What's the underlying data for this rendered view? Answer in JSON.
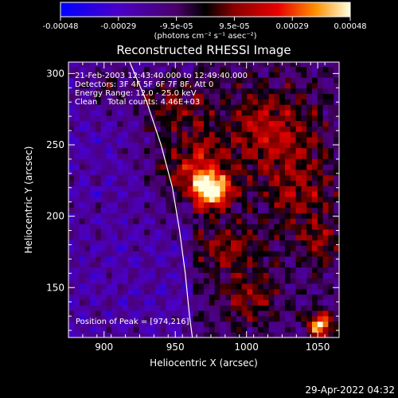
{
  "chart_data": {
    "type": "heatmap",
    "title": "Reconstructed RHESSI Image",
    "xlabel": "Heliocentric X (arcsec)",
    "ylabel": "Heliocentric Y (arcsec)",
    "xlim": [
      875,
      1065
    ],
    "ylim": [
      115,
      308
    ],
    "x_ticks": [
      900,
      950,
      1000,
      1050
    ],
    "y_ticks": [
      150,
      200,
      250,
      300
    ],
    "colorbar": {
      "ticks": [
        "-0.00048",
        "-0.00029",
        "-9.5e-05",
        "9.5e-05",
        "0.00029",
        "0.00048"
      ],
      "unit_label": "(photons cm⁻² s⁻¹ asec⁻²)",
      "range": [
        -0.00048,
        0.00048
      ]
    },
    "annotations": [
      "21-Feb-2003 12:43:40.000 to 12:49:40.000",
      "Detectors: 3F 4F 5F 6F 7F 8F, Att 0",
      "Energy Range: 12.0 - 25.0 keV",
      "Clean    Total counts: 4.46E+03"
    ],
    "peak_label": "Position of Peak = [974,216]",
    "peak": {
      "x": 974,
      "y": 216
    },
    "limb_curve": [
      [
        918,
        308
      ],
      [
        930,
        280
      ],
      [
        940,
        250
      ],
      [
        948,
        220
      ],
      [
        953,
        190
      ],
      [
        957,
        160
      ],
      [
        960,
        130
      ],
      [
        962,
        115
      ]
    ],
    "blobs": [
      {
        "x": 974,
        "y": 216,
        "sx": 9,
        "sy": 8,
        "a": 1.0
      },
      {
        "x": 960,
        "y": 230,
        "sx": 18,
        "sy": 16,
        "a": 0.55
      },
      {
        "x": 945,
        "y": 275,
        "sx": 16,
        "sy": 18,
        "a": 0.45
      },
      {
        "x": 1015,
        "y": 260,
        "sx": 22,
        "sy": 20,
        "a": 0.45
      },
      {
        "x": 1035,
        "y": 215,
        "sx": 18,
        "sy": 20,
        "a": 0.35
      },
      {
        "x": 985,
        "y": 175,
        "sx": 18,
        "sy": 12,
        "a": 0.35
      },
      {
        "x": 1000,
        "y": 140,
        "sx": 14,
        "sy": 12,
        "a": 0.35
      },
      {
        "x": 1050,
        "y": 122,
        "sx": 6,
        "sy": 6,
        "a": 0.9
      },
      {
        "x": 1050,
        "y": 180,
        "sx": 10,
        "sy": 10,
        "a": 0.3
      },
      {
        "x": 900,
        "y": 290,
        "sx": 10,
        "sy": 10,
        "a": 0.25
      }
    ]
  },
  "footer": {
    "timestamp": "29-Apr-2022 04:32"
  }
}
